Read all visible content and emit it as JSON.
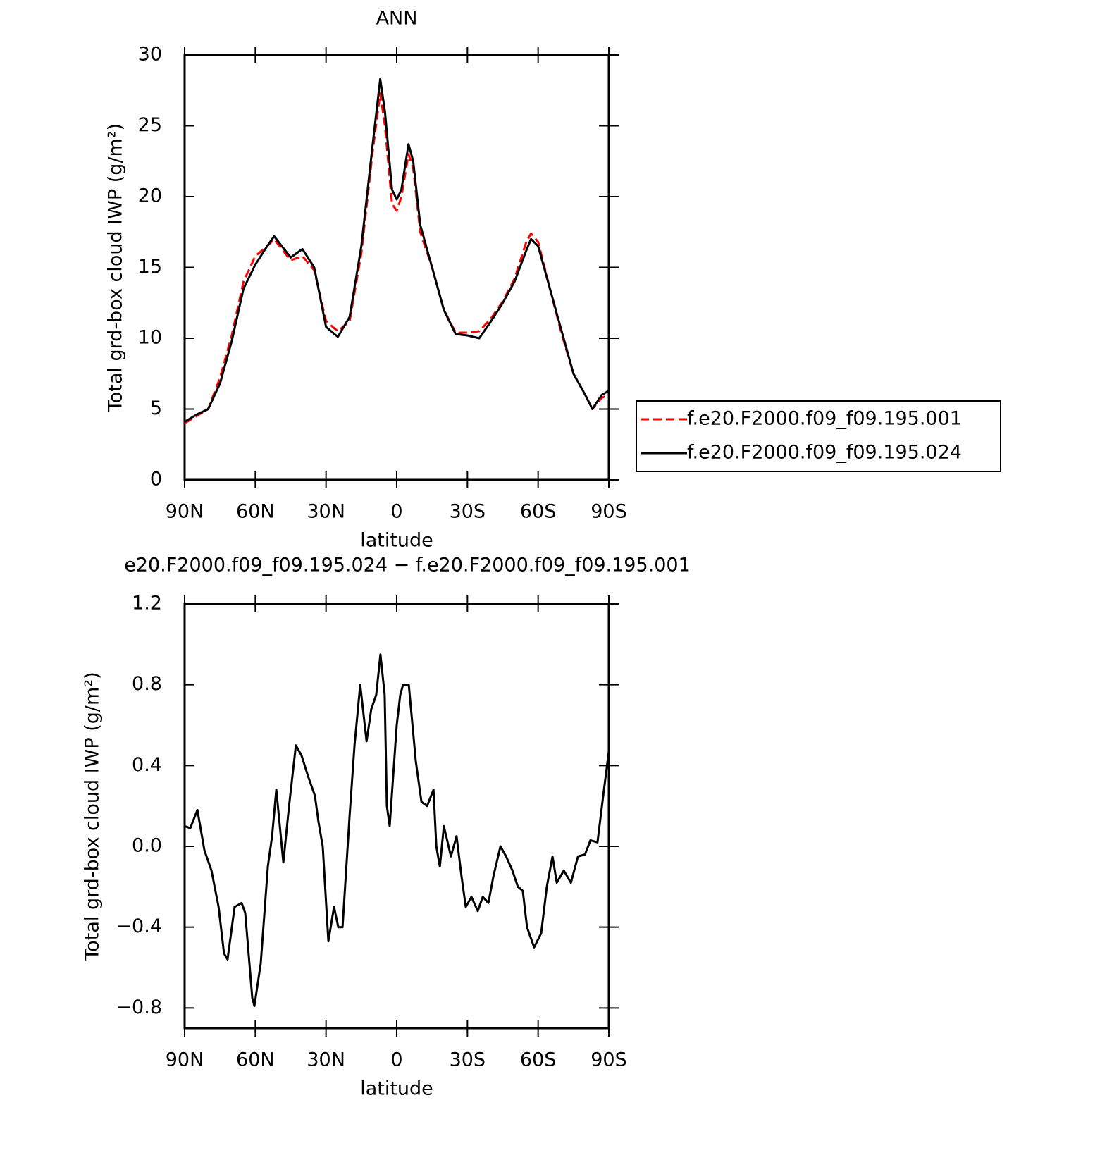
{
  "chart_data": [
    {
      "type": "line",
      "title": "ANN",
      "xlabel": "latitude",
      "ylabel": "Total grd-box cloud IWP (g/m²)",
      "x": [
        90,
        85,
        80,
        75,
        70,
        65,
        60,
        55,
        52,
        45,
        40,
        35,
        30,
        25,
        20,
        15,
        10,
        7,
        5,
        2,
        0,
        -2,
        -5,
        -7,
        -10,
        -15,
        -20,
        -25,
        -30,
        -35,
        -40,
        -45,
        -50,
        -55,
        -57,
        -60,
        -65,
        -70,
        -75,
        -80,
        -83,
        -87,
        -90
      ],
      "series": [
        {
          "name": "f.e20.F2000.f09_f09.195.001",
          "color": "#ff0000",
          "dash": "dashed",
          "values": [
            4.0,
            4.5,
            5.0,
            7.2,
            10.2,
            14.0,
            15.8,
            16.5,
            17.0,
            15.5,
            15.8,
            14.8,
            11.2,
            10.5,
            11.2,
            16.0,
            23.5,
            27.3,
            25.0,
            19.5,
            19.0,
            20.0,
            23.0,
            22.0,
            17.5,
            15.0,
            12.0,
            10.4,
            10.4,
            10.5,
            11.4,
            12.6,
            14.2,
            16.8,
            17.4,
            16.8,
            13.5,
            10.3,
            7.5,
            6.0,
            5.0,
            5.8,
            6.0
          ]
        },
        {
          "name": "f.e20.F2000.f09_f09.195.024",
          "color": "#000000",
          "dash": "solid",
          "values": [
            4.1,
            4.6,
            5.0,
            6.8,
            9.8,
            13.5,
            15.2,
            16.5,
            17.2,
            15.7,
            16.3,
            15.0,
            10.8,
            10.1,
            11.5,
            16.5,
            24.0,
            28.3,
            26.0,
            20.5,
            19.8,
            20.5,
            23.7,
            22.5,
            18.0,
            15.0,
            12.0,
            10.3,
            10.2,
            10.0,
            11.2,
            12.5,
            14.0,
            16.2,
            17.0,
            16.5,
            13.5,
            10.5,
            7.5,
            6.0,
            5.0,
            6.0,
            6.3
          ]
        }
      ],
      "xlim": [
        90,
        -90
      ],
      "xticks": [
        {
          "value": 90,
          "label": "90N"
        },
        {
          "value": 60,
          "label": "60N"
        },
        {
          "value": 30,
          "label": "30N"
        },
        0,
        {
          "value": -30,
          "label": "30S"
        },
        {
          "value": -60,
          "label": "60S"
        },
        {
          "value": -90,
          "label": "90S"
        }
      ],
      "ylim": [
        0,
        30
      ],
      "yticks": [
        0,
        5,
        10,
        15,
        20,
        25,
        30
      ],
      "legend": "right"
    },
    {
      "type": "line",
      "title": "e20.F2000.f09_f09.195.024 − f.e20.F2000.f09_f09.195.001",
      "xlabel": "latitude",
      "ylabel": "Total grd-box cloud IWP (g/m²)",
      "x": [
        90,
        87.6,
        84.6,
        81.6,
        78.6,
        75.6,
        73.3,
        71.8,
        68.8,
        65.8,
        64.3,
        61.3,
        60.4,
        57.7,
        54.7,
        52.9,
        51.1,
        48.1,
        45.7,
        42.8,
        40.4,
        37.7,
        34.7,
        33.2,
        31.4,
        29,
        26.6,
        24.8,
        23,
        20,
        17.9,
        15.5,
        12.8,
        10.8,
        8.7,
        6.9,
        5.1,
        4.2,
        3.0,
        0,
        -1.5,
        -2.7,
        -5.1,
        -8.1,
        -10.5,
        -12.9,
        -15.6,
        -16.8,
        -18.3,
        -20,
        -23,
        -25.4,
        -27.5,
        -29.3,
        -31.7,
        -34.4,
        -36.5,
        -38.9,
        -41,
        -44,
        -46.4,
        -49.1,
        -51.4,
        -53.5,
        -55.3,
        -58.3,
        -61.3,
        -63.7,
        -66.1,
        -67.9,
        -70.9,
        -73.9,
        -76.9,
        -79.9,
        -82.2,
        -85.2,
        -87.6,
        -90
      ],
      "series": [
        {
          "color": "#000000",
          "dash": "solid",
          "values": [
            0.1,
            0.09,
            0.18,
            -0.02,
            -0.12,
            -0.3,
            -0.53,
            -0.56,
            -0.3,
            -0.28,
            -0.33,
            -0.75,
            -0.79,
            -0.58,
            -0.1,
            0.05,
            0.28,
            -0.08,
            0.2,
            0.5,
            0.45,
            0.35,
            0.25,
            0.12,
            0.0,
            -0.47,
            -0.3,
            -0.4,
            -0.4,
            0.15,
            0.5,
            0.8,
            0.52,
            0.68,
            0.75,
            0.95,
            0.75,
            0.2,
            0.1,
            0.6,
            0.75,
            0.8,
            0.8,
            0.42,
            0.22,
            0.2,
            0.28,
            0.0,
            -0.1,
            0.1,
            -0.05,
            0.05,
            -0.15,
            -0.3,
            -0.25,
            -0.32,
            -0.25,
            -0.28,
            -0.15,
            0.0,
            -0.05,
            -0.12,
            -0.2,
            -0.22,
            -0.4,
            -0.5,
            -0.43,
            -0.2,
            -0.05,
            -0.18,
            -0.12,
            -0.18,
            -0.05,
            -0.04,
            0.03,
            0.02,
            0.25,
            0.47
          ]
        }
      ],
      "xlim": [
        90,
        -90
      ],
      "xticks": [
        {
          "value": 90,
          "label": "90N"
        },
        {
          "value": 60,
          "label": "60N"
        },
        {
          "value": 30,
          "label": "30N"
        },
        0,
        {
          "value": -30,
          "label": "30S"
        },
        {
          "value": -60,
          "label": "60S"
        },
        {
          "value": -90,
          "label": "90S"
        }
      ],
      "ylim": [
        -0.9,
        1.2
      ],
      "yticks": [
        {
          "value": -0.8,
          "label": "−0.8"
        },
        {
          "value": -0.4,
          "label": "−0.4"
        },
        {
          "value": 0,
          "label": "0.0"
        },
        0.4,
        0.8,
        1.2
      ]
    }
  ]
}
